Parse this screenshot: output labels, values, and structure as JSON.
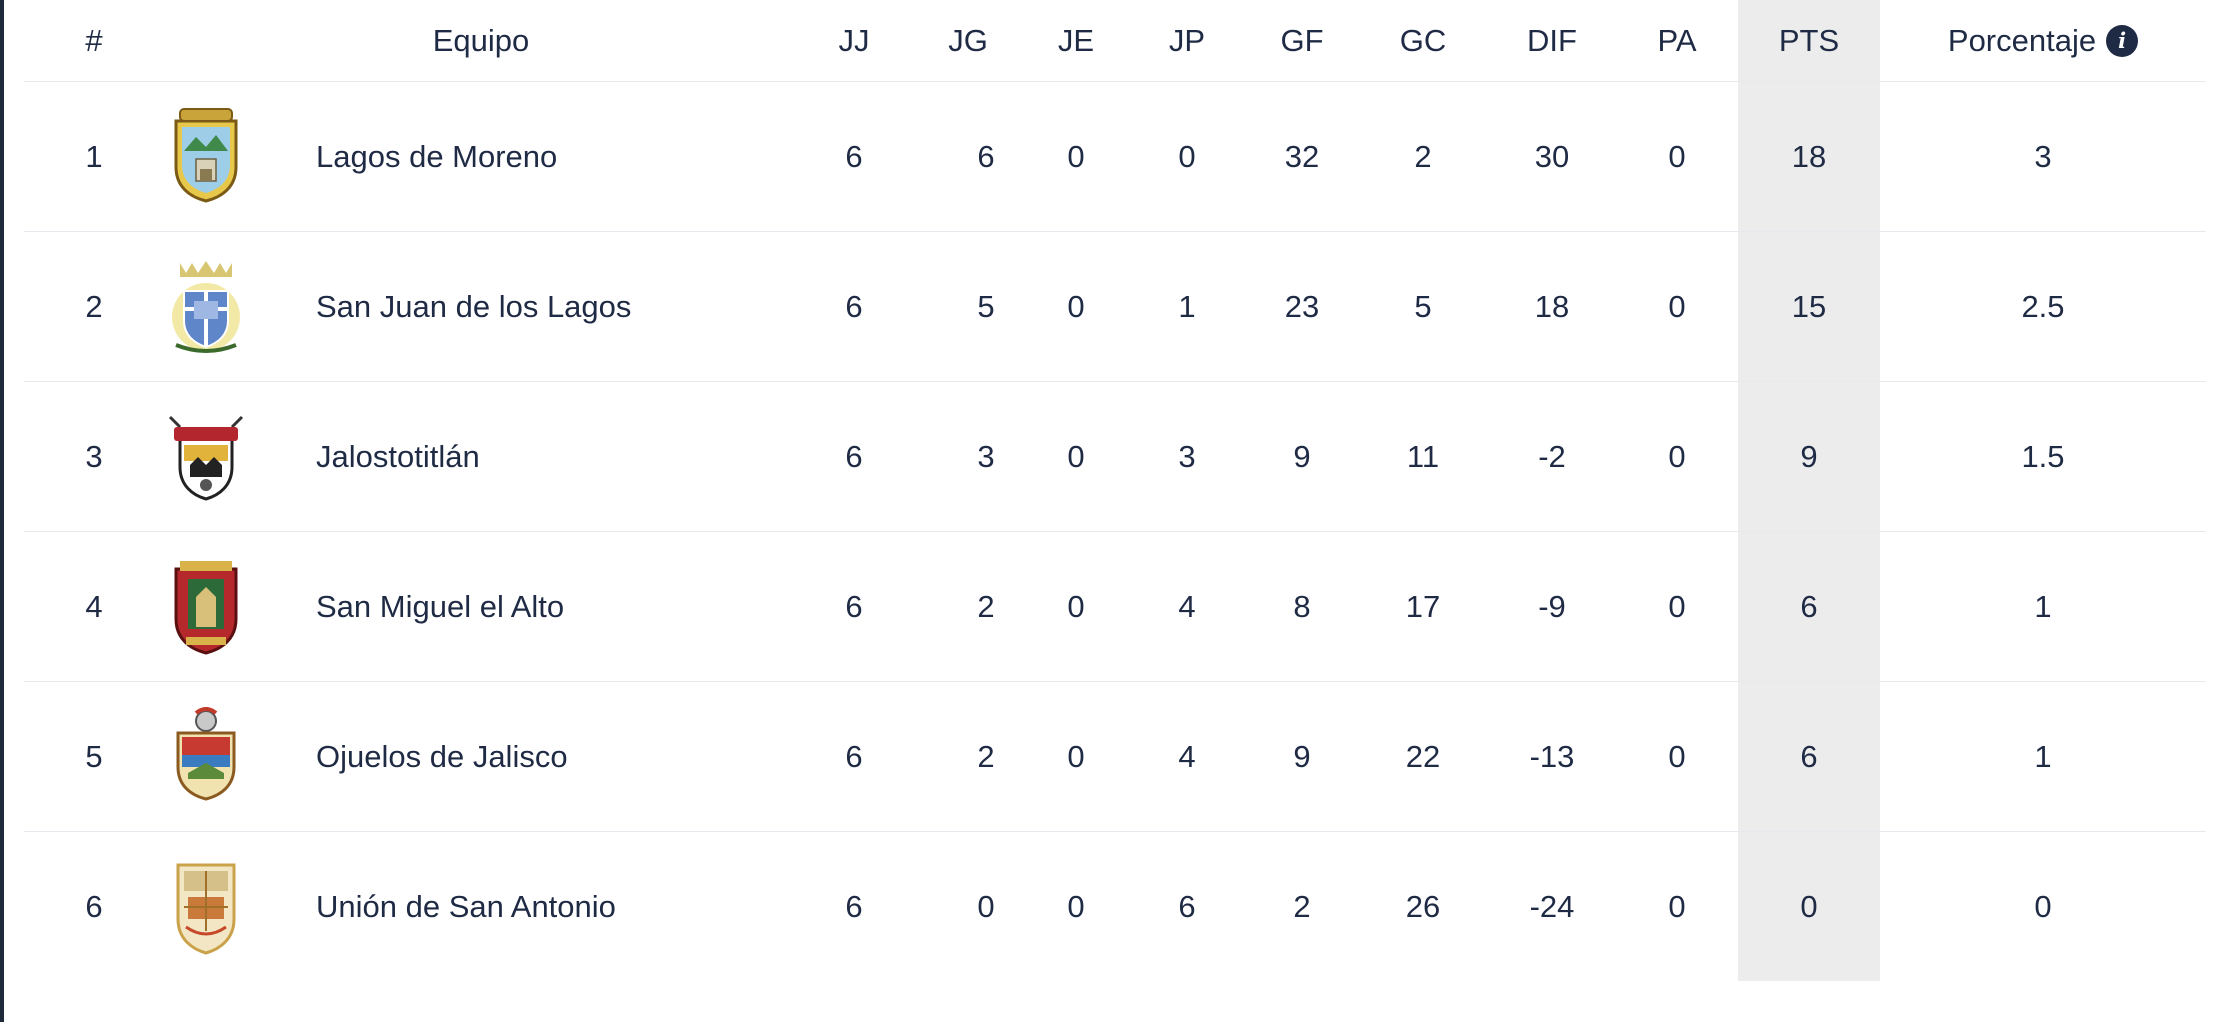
{
  "headers": {
    "rank": "#",
    "team": "Equipo",
    "jj": "JJ",
    "jg": "JG",
    "je": "JE",
    "jp": "JP",
    "gf": "GF",
    "gc": "GC",
    "dif": "DIF",
    "pa": "PA",
    "pts": "PTS",
    "pct": "Porcentaje",
    "pct_icon": "info-icon"
  },
  "rows": [
    {
      "rank": "1",
      "team": "Lagos de Moreno",
      "logo": "crest-lagos-de-moreno",
      "jj": "6",
      "jg": "6",
      "je": "0",
      "jp": "0",
      "gf": "32",
      "gc": "2",
      "dif": "30",
      "pa": "0",
      "pts": "18",
      "pct": "3"
    },
    {
      "rank": "2",
      "team": "San Juan de los Lagos",
      "logo": "crest-san-juan-de-los-lagos",
      "jj": "6",
      "jg": "5",
      "je": "0",
      "jp": "1",
      "gf": "23",
      "gc": "5",
      "dif": "18",
      "pa": "0",
      "pts": "15",
      "pct": "2.5"
    },
    {
      "rank": "3",
      "team": "Jalostotitlán",
      "logo": "crest-jalostotitlan",
      "jj": "6",
      "jg": "3",
      "je": "0",
      "jp": "3",
      "gf": "9",
      "gc": "11",
      "dif": "-2",
      "pa": "0",
      "pts": "9",
      "pct": "1.5"
    },
    {
      "rank": "4",
      "team": "San Miguel el Alto",
      "logo": "crest-san-miguel-el-alto",
      "jj": "6",
      "jg": "2",
      "je": "0",
      "jp": "4",
      "gf": "8",
      "gc": "17",
      "dif": "-9",
      "pa": "0",
      "pts": "6",
      "pct": "1"
    },
    {
      "rank": "5",
      "team": "Ojuelos de Jalisco",
      "logo": "crest-ojuelos-de-jalisco",
      "jj": "6",
      "jg": "2",
      "je": "0",
      "jp": "4",
      "gf": "9",
      "gc": "22",
      "dif": "-13",
      "pa": "0",
      "pts": "6",
      "pct": "1"
    },
    {
      "rank": "6",
      "team": "Unión de San Antonio",
      "logo": "crest-union-de-san-antonio",
      "jj": "6",
      "jg": "0",
      "je": "0",
      "jp": "6",
      "gf": "2",
      "gc": "26",
      "dif": "-24",
      "pa": "0",
      "pts": "0",
      "pct": "0"
    }
  ],
  "colors": {
    "text": "#1f2a44",
    "pts_column_bg": "#ececec",
    "row_divider": "#e7e9ee"
  }
}
